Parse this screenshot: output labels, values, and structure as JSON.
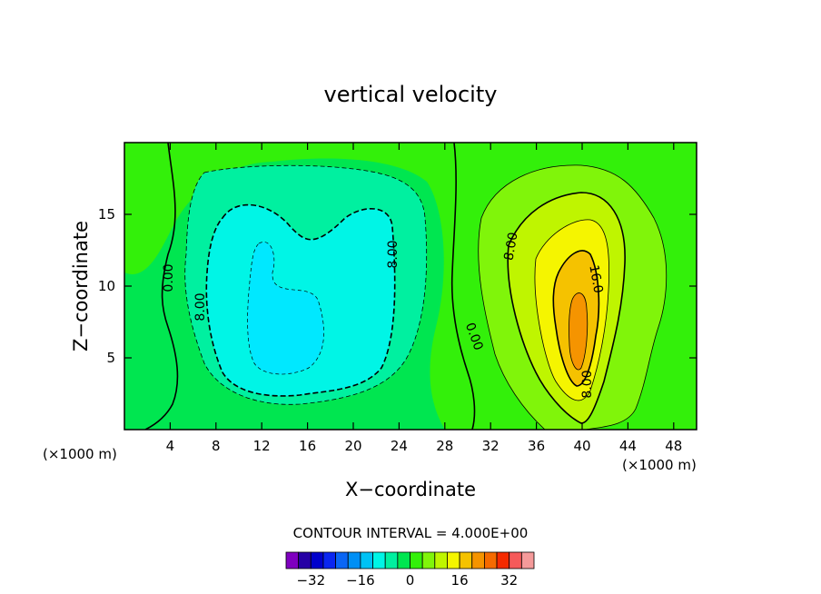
{
  "chart_data": {
    "type": "contour",
    "title": "vertical velocity",
    "xlabel": "X−coordinate",
    "ylabel": "Z−coordinate",
    "x_unit": "(×1000 m)",
    "xlim": [
      0,
      50
    ],
    "ylim": [
      0,
      20
    ],
    "x_ticks": [
      4,
      8,
      12,
      16,
      20,
      24,
      28,
      32,
      36,
      40,
      44,
      48
    ],
    "y_ticks": [
      5,
      10,
      15
    ],
    "contour_interval_text": "CONTOUR INTERVAL = 4.000E+00",
    "contour_labels": [
      "8.00",
      "0.00",
      "8.00",
      "0.00",
      "8.00",
      "16.0",
      "8.00"
    ],
    "colorbar": {
      "levels": [
        -36,
        -32,
        -28,
        -24,
        -20,
        -16,
        -12,
        -8,
        -4,
        0,
        4,
        8,
        12,
        16,
        20,
        24,
        28,
        32,
        36
      ],
      "colors": [
        "#7f00bf",
        "#2600a5",
        "#0000cc",
        "#0a26f0",
        "#0a66f5",
        "#008ff5",
        "#00c2f5",
        "#00f5e6",
        "#00f0a0",
        "#00e650",
        "#33f00a",
        "#80f50a",
        "#bff500",
        "#f5f500",
        "#f5c200",
        "#f59400",
        "#f56a00",
        "#f52a00",
        "#f55a5a",
        "#f59a9a"
      ],
      "tick_labels": [
        "−32",
        "−16",
        "0",
        "16",
        "32"
      ],
      "tick_values": [
        -32,
        -16,
        0,
        16,
        32
      ]
    }
  }
}
